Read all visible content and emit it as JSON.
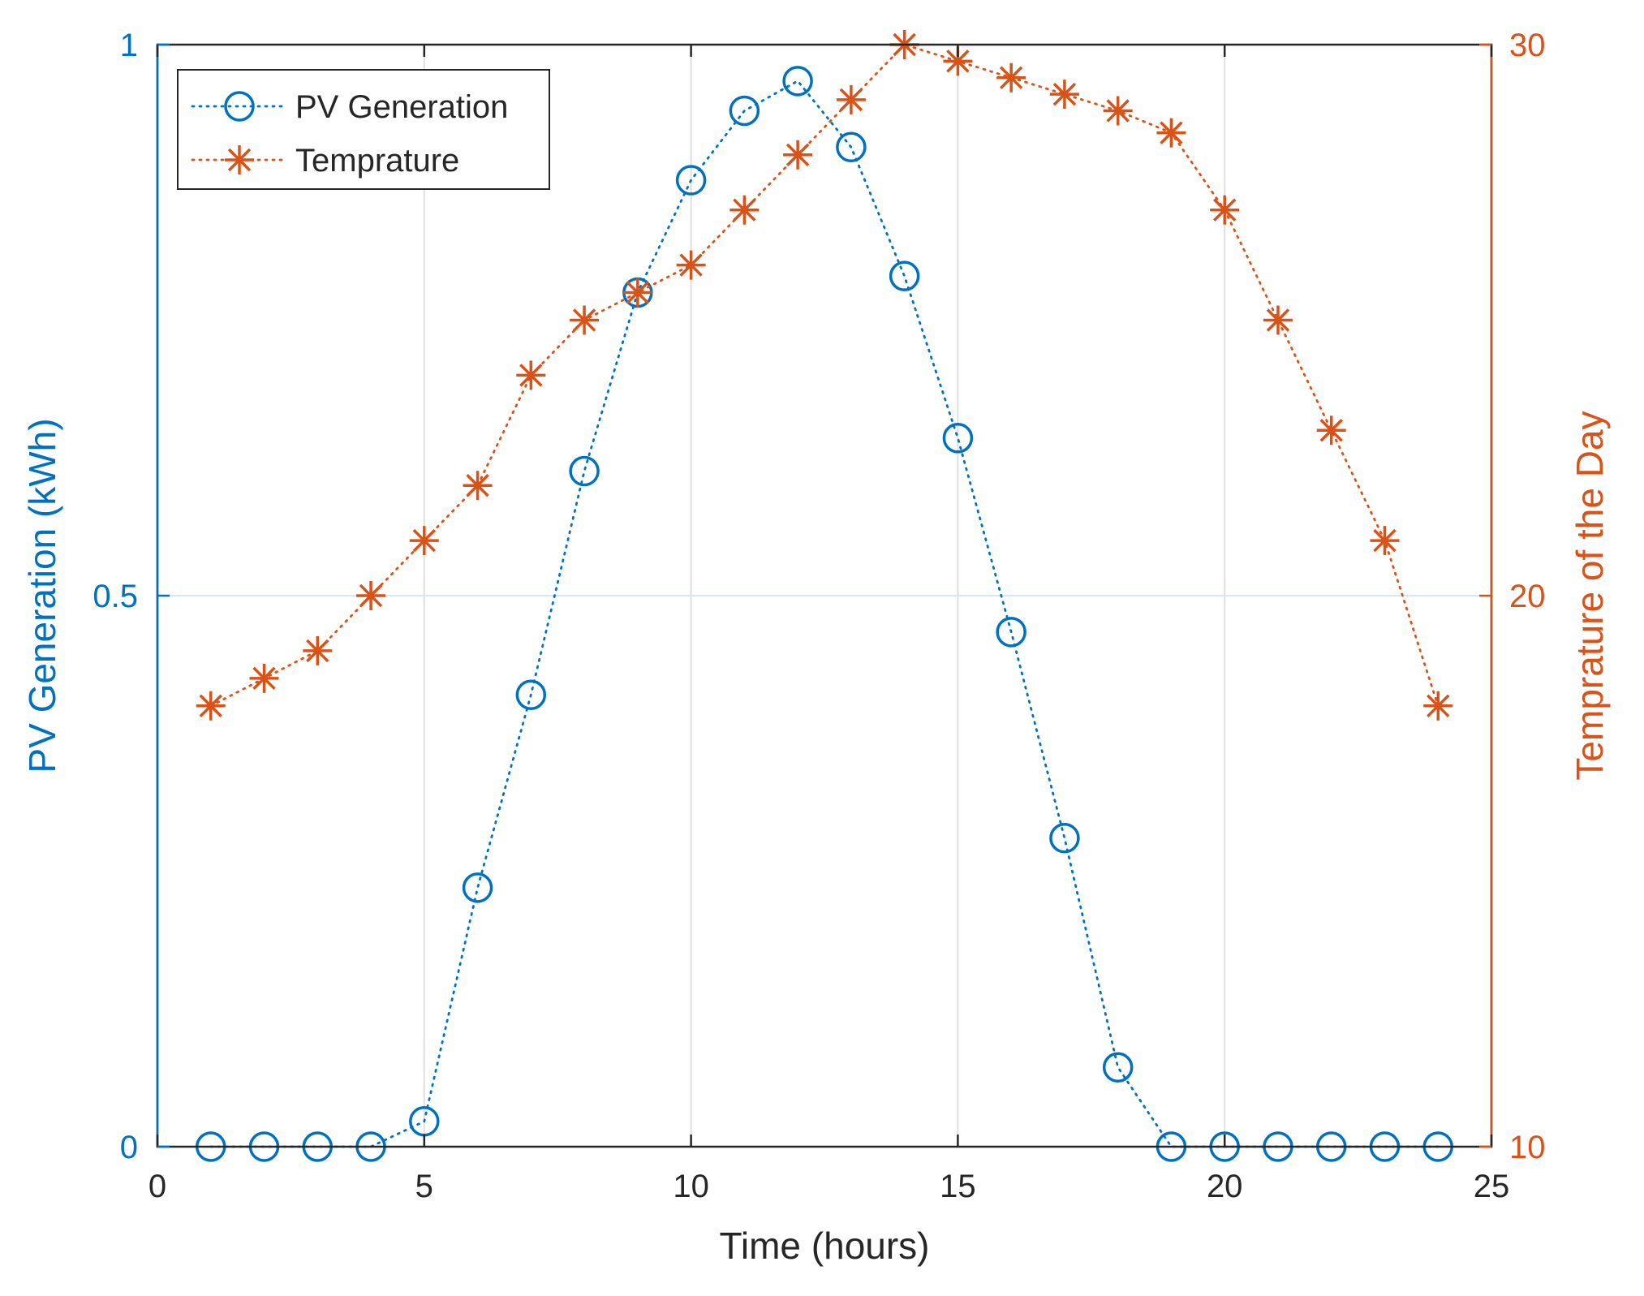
{
  "chart_data": {
    "type": "line",
    "title": "",
    "xlabel": "Time (hours)",
    "ylabel": "PV Generation (kWh)",
    "y2label": "Temprature of the Day",
    "xlim": [
      0,
      25
    ],
    "ylim": [
      0,
      1
    ],
    "y2lim": [
      10,
      30
    ],
    "xticks": [
      0,
      5,
      10,
      15,
      20,
      25
    ],
    "yticks": [
      0,
      0.5,
      1
    ],
    "y2ticks": [
      10,
      20,
      30
    ],
    "grid": true,
    "legend_position": "top-left",
    "x": [
      1,
      2,
      3,
      4,
      5,
      6,
      7,
      8,
      9,
      10,
      11,
      12,
      13,
      14,
      15,
      16,
      17,
      18,
      19,
      20,
      21,
      22,
      23,
      24
    ],
    "series": [
      {
        "name": "PV Generation",
        "axis": "left",
        "marker": "circle",
        "color": "#0072BD",
        "values": [
          0,
          0,
          0,
          0,
          0.023,
          0.235,
          0.41,
          0.613,
          0.775,
          0.877,
          0.94,
          0.967,
          0.907,
          0.79,
          0.643,
          0.467,
          0.28,
          0.072,
          0,
          0,
          0,
          0,
          0,
          0
        ]
      },
      {
        "name": "Temprature",
        "axis": "right",
        "marker": "asterisk",
        "color": "#D95319",
        "values": [
          18,
          18.5,
          19,
          20,
          21,
          22,
          24,
          25,
          25.5,
          26,
          27,
          28,
          29,
          30,
          29.7,
          29.4,
          29.1,
          28.8,
          28.4,
          27,
          25,
          23,
          21,
          18
        ]
      }
    ]
  }
}
